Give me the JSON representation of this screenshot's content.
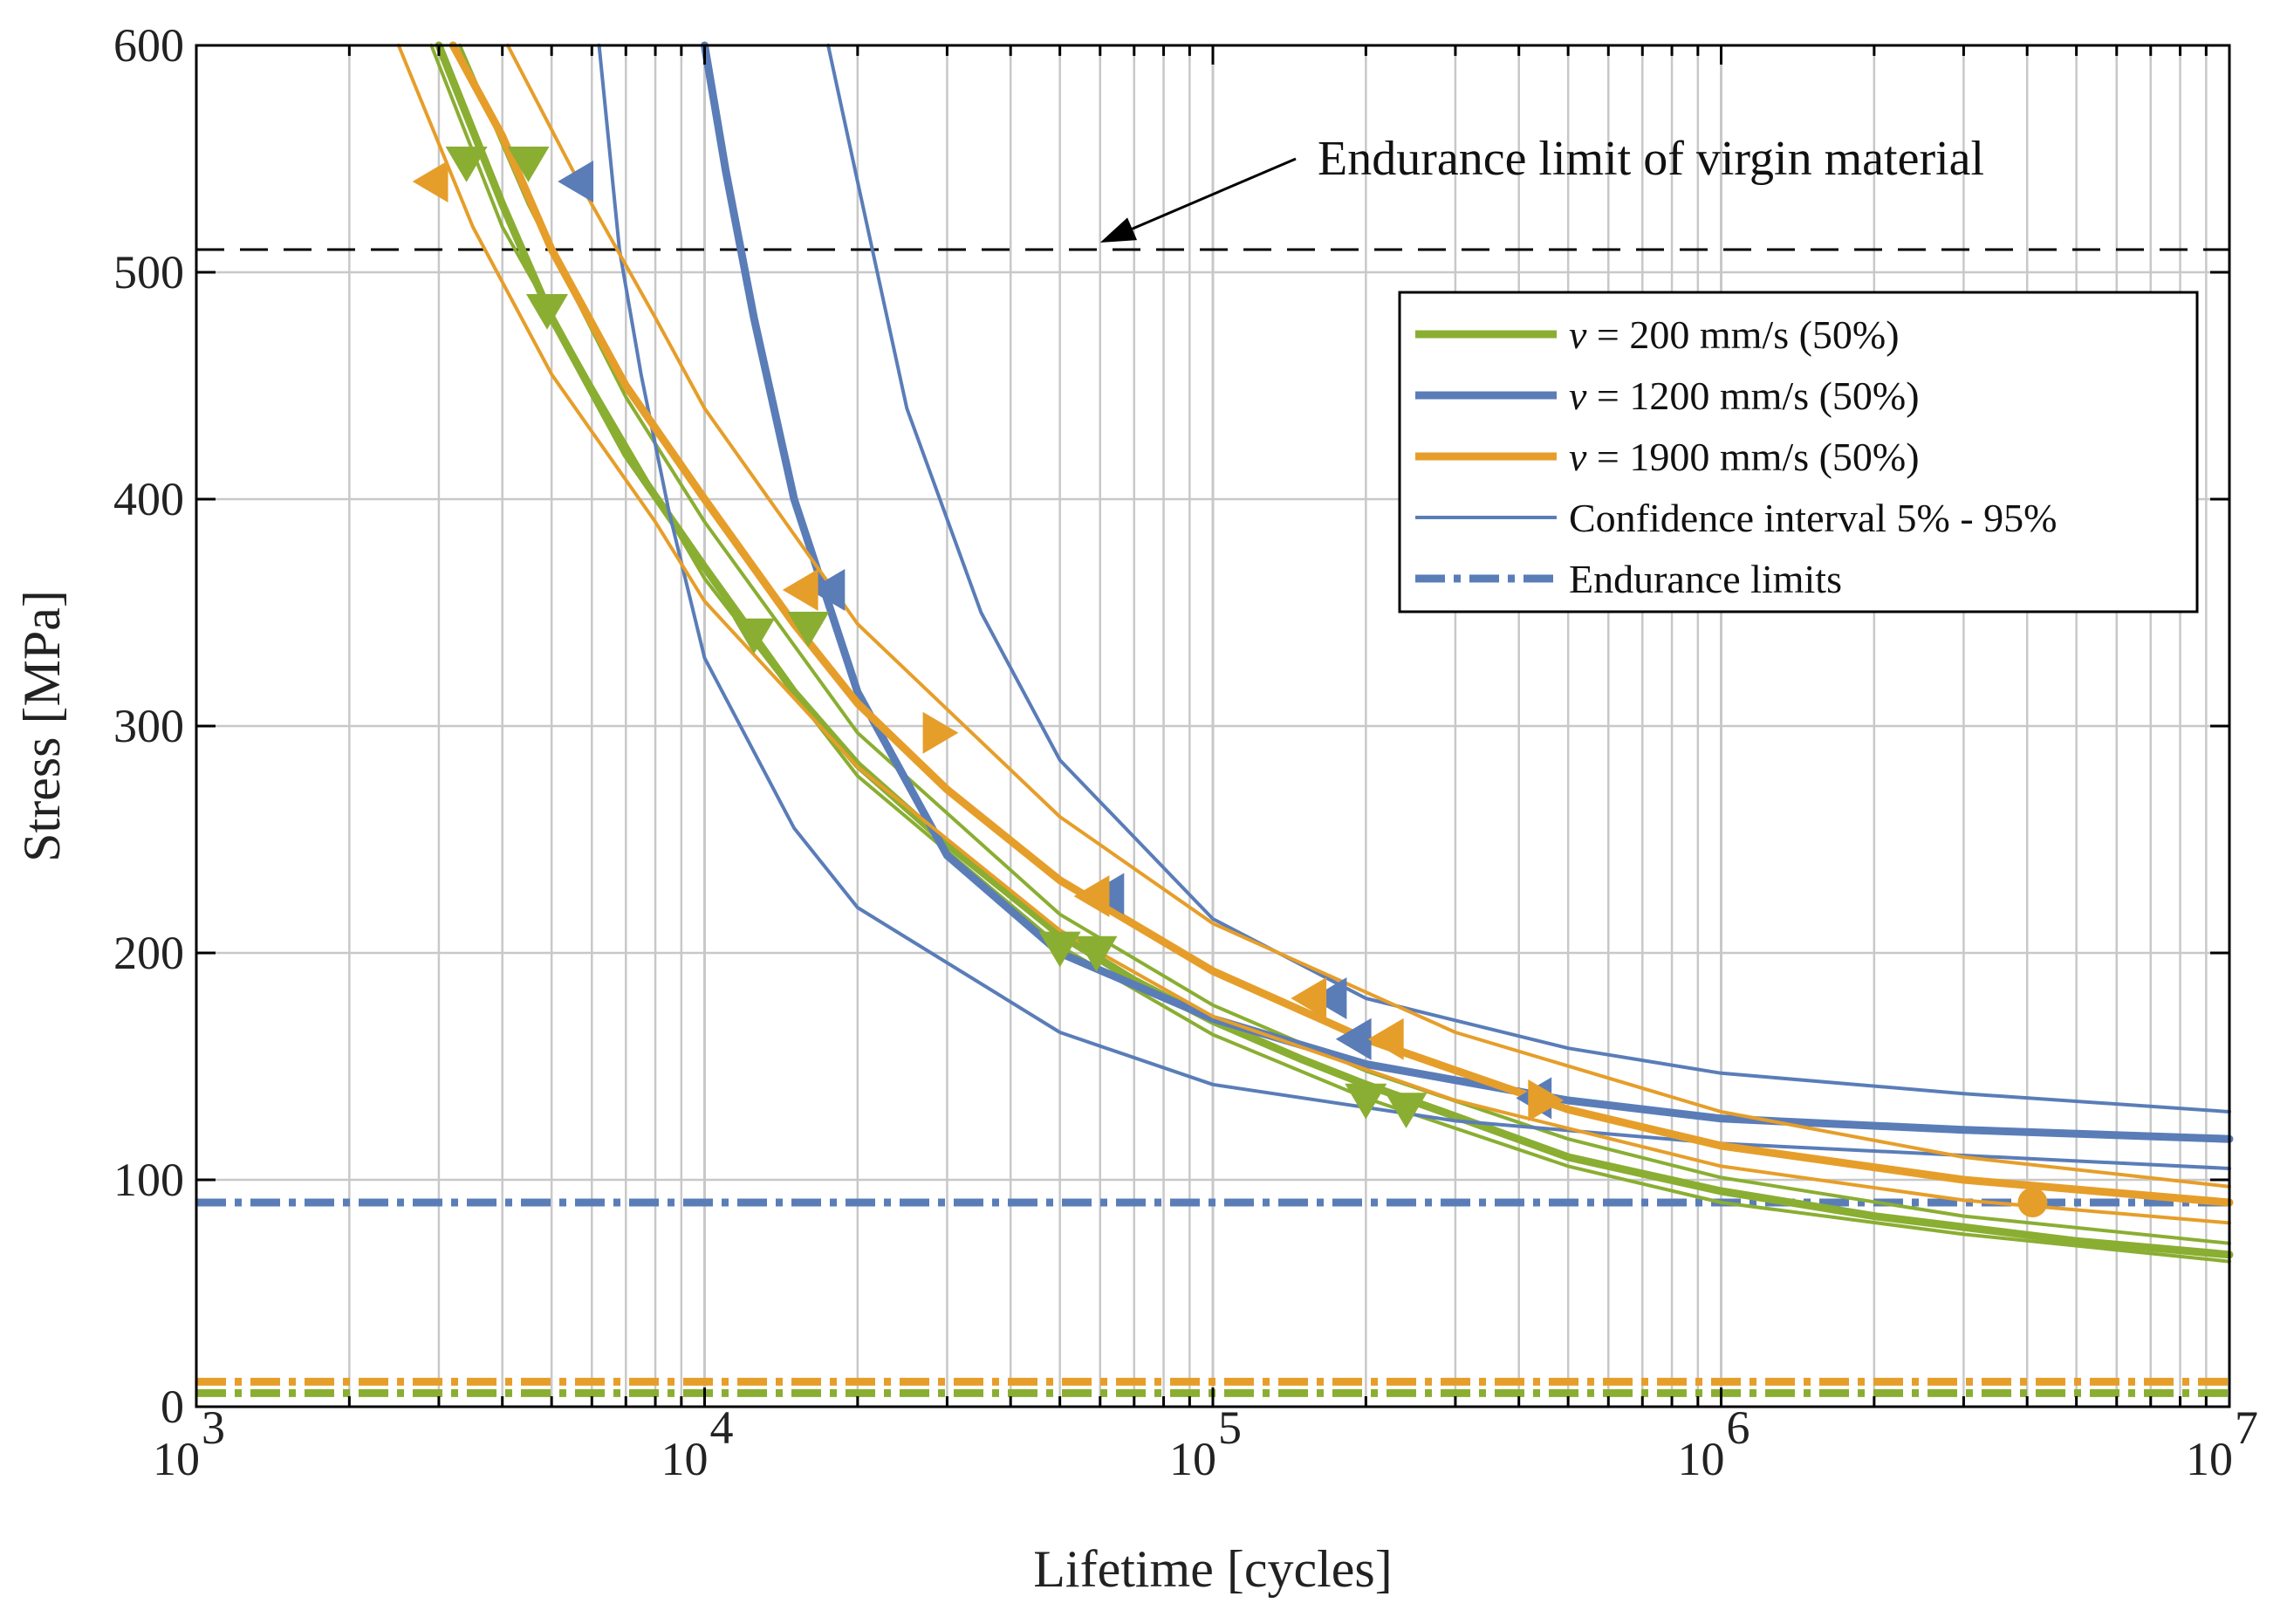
{
  "colors": {
    "green": "#8aae32",
    "blue": "#5a7db8",
    "orange": "#e69e2a",
    "grid": "#c8c8c8",
    "axis": "#000000",
    "endurance_virgin": "#000000"
  },
  "chart_data": {
    "type": "line",
    "xscale": "log",
    "xlabel": "Lifetime [cycles]",
    "ylabel": "Stress [MPa]",
    "xlim": [
      1000,
      10000000
    ],
    "ylim": [
      0,
      600
    ],
    "x_ticks": [
      {
        "value": 1000,
        "base": "10",
        "exp": "3"
      },
      {
        "value": 10000,
        "base": "10",
        "exp": "4"
      },
      {
        "value": 100000,
        "base": "10",
        "exp": "5"
      },
      {
        "value": 1000000,
        "base": "10",
        "exp": "6"
      },
      {
        "value": 10000000,
        "base": "10",
        "exp": "7"
      }
    ],
    "y_ticks": [
      {
        "value": 0,
        "label": "0"
      },
      {
        "value": 100,
        "label": "100"
      },
      {
        "value": 200,
        "label": "200"
      },
      {
        "value": 300,
        "label": "300"
      },
      {
        "value": 400,
        "label": "400"
      },
      {
        "value": 500,
        "label": "500"
      },
      {
        "value": 600,
        "label": "600"
      }
    ],
    "grid": true,
    "legend_position": "top-right",
    "legend": [
      {
        "italic": "v",
        "text": " = 200 mm/s (50%)",
        "color_key": "green",
        "style": "thick"
      },
      {
        "italic": "v",
        "text": " = 1200 mm/s (50%)",
        "color_key": "blue",
        "style": "thick"
      },
      {
        "italic": "v",
        "text": " = 1900 mm/s (50%)",
        "color_key": "orange",
        "style": "thick"
      },
      {
        "italic": "",
        "text": "Confidence interval 5% - 95%",
        "color_key": "blue",
        "style": "thin"
      },
      {
        "italic": "",
        "text": "Endurance limits",
        "color_key": "blue",
        "style": "dashdot"
      }
    ],
    "annotation": {
      "text": "Endurance limit of virgin material",
      "endurance_limit_virgin_MPa": 510,
      "arrow_to": {
        "x": 60000,
        "y": 510
      }
    },
    "endurance_limits": [
      {
        "series": "v = 1200 mm/s",
        "color_key": "blue",
        "value": 90
      },
      {
        "series": "v = 1900 mm/s",
        "color_key": "orange",
        "value": 11
      },
      {
        "series": "v = 200 mm/s",
        "color_key": "green",
        "value": 6
      }
    ],
    "series": [
      {
        "name": "v = 200 mm/s (50%)",
        "color_key": "green",
        "median": [
          [
            3000,
            600
          ],
          [
            4000,
            530
          ],
          [
            5000,
            480
          ],
          [
            7000,
            420
          ],
          [
            10000,
            370
          ],
          [
            15000,
            315
          ],
          [
            20000,
            283
          ],
          [
            30000,
            248
          ],
          [
            50000,
            208
          ],
          [
            70000,
            188
          ],
          [
            100000,
            170
          ],
          [
            150000,
            153
          ],
          [
            200000,
            142
          ],
          [
            300000,
            128
          ],
          [
            500000,
            110
          ],
          [
            1000000,
            95
          ],
          [
            2000000,
            84
          ],
          [
            5000000,
            73
          ],
          [
            10000000,
            67
          ]
        ],
        "bounds": [
          [
            [
              2900,
              600
            ],
            [
              4000,
              520
            ],
            [
              6000,
              450
            ],
            [
              10000,
              365
            ],
            [
              20000,
              278
            ],
            [
              50000,
              203
            ],
            [
              100000,
              164
            ],
            [
              200000,
              136
            ],
            [
              500000,
              106
            ],
            [
              1000000,
              90
            ],
            [
              3000000,
              76
            ],
            [
              10000000,
              64
            ]
          ],
          [
            [
              3300,
              600
            ],
            [
              4500,
              530
            ],
            [
              7000,
              445
            ],
            [
              10000,
              390
            ],
            [
              20000,
              297
            ],
            [
              50000,
              217
            ],
            [
              100000,
              177
            ],
            [
              200000,
              148
            ],
            [
              500000,
              118
            ],
            [
              1000000,
              101
            ],
            [
              3000000,
              84
            ],
            [
              10000000,
              72
            ]
          ]
        ],
        "points": [
          {
            "x": 3400,
            "y": 548,
            "marker": "triangle-down"
          },
          {
            "x": 4500,
            "y": 548,
            "marker": "triangle-down"
          },
          {
            "x": 4900,
            "y": 483,
            "marker": "triangle-down"
          },
          {
            "x": 12500,
            "y": 340,
            "marker": "triangle-down"
          },
          {
            "x": 16000,
            "y": 343,
            "marker": "triangle-down"
          },
          {
            "x": 50000,
            "y": 202,
            "marker": "triangle-down"
          },
          {
            "x": 59000,
            "y": 200,
            "marker": "triangle-down"
          },
          {
            "x": 200000,
            "y": 135,
            "marker": "triangle-down"
          },
          {
            "x": 240000,
            "y": 131,
            "marker": "triangle-down"
          }
        ]
      },
      {
        "name": "v = 1200 mm/s (50%)",
        "color_key": "blue",
        "median": [
          [
            10000,
            600
          ],
          [
            11000,
            545
          ],
          [
            12500,
            480
          ],
          [
            15000,
            400
          ],
          [
            20000,
            315
          ],
          [
            30000,
            243
          ],
          [
            50000,
            200
          ],
          [
            100000,
            171
          ],
          [
            200000,
            151
          ],
          [
            500000,
            135
          ],
          [
            1000000,
            127
          ],
          [
            3000000,
            122
          ],
          [
            10000000,
            118
          ]
        ],
        "bounds": [
          [
            [
              6200,
              600
            ],
            [
              6800,
              510
            ],
            [
              7500,
              455
            ],
            [
              8500,
              395
            ],
            [
              10000,
              330
            ],
            [
              15000,
              255
            ],
            [
              20000,
              220
            ],
            [
              50000,
              165
            ],
            [
              100000,
              142
            ],
            [
              300000,
              126
            ],
            [
              1000000,
              116
            ],
            [
              10000000,
              105
            ]
          ],
          [
            [
              17500,
              600
            ],
            [
              20000,
              540
            ],
            [
              25000,
              440
            ],
            [
              35000,
              350
            ],
            [
              50000,
              285
            ],
            [
              100000,
              215
            ],
            [
              200000,
              180
            ],
            [
              500000,
              158
            ],
            [
              1000000,
              147
            ],
            [
              3000000,
              138
            ],
            [
              10000000,
              130
            ]
          ]
        ],
        "points": [
          {
            "x": 5600,
            "y": 540,
            "marker": "triangle-left"
          },
          {
            "x": 17500,
            "y": 360,
            "marker": "triangle-left"
          },
          {
            "x": 62000,
            "y": 226,
            "marker": "triangle-left"
          },
          {
            "x": 170000,
            "y": 180,
            "marker": "triangle-left"
          },
          {
            "x": 190000,
            "y": 162,
            "marker": "triangle-left"
          },
          {
            "x": 430000,
            "y": 136,
            "marker": "triangle-left"
          }
        ]
      },
      {
        "name": "v = 1900 mm/s (50%)",
        "color_key": "orange",
        "median": [
          [
            3200,
            600
          ],
          [
            4000,
            560
          ],
          [
            5000,
            510
          ],
          [
            7000,
            450
          ],
          [
            10000,
            400
          ],
          [
            15000,
            345
          ],
          [
            20000,
            310
          ],
          [
            30000,
            272
          ],
          [
            50000,
            232
          ],
          [
            100000,
            192
          ],
          [
            200000,
            162
          ],
          [
            500000,
            131
          ],
          [
            1000000,
            115
          ],
          [
            3000000,
            100
          ],
          [
            10000000,
            90
          ]
        ],
        "bounds": [
          [
            [
              2500,
              600
            ],
            [
              3500,
              520
            ],
            [
              5000,
              455
            ],
            [
              8000,
              390
            ],
            [
              10000,
              355
            ],
            [
              20000,
              282
            ],
            [
              50000,
              210
            ],
            [
              100000,
              172
            ],
            [
              300000,
              135
            ],
            [
              1000000,
              106
            ],
            [
              3000000,
              91
            ],
            [
              10000000,
              81
            ]
          ],
          [
            [
              4100,
              600
            ],
            [
              5500,
              545
            ],
            [
              8000,
              480
            ],
            [
              10000,
              440
            ],
            [
              20000,
              345
            ],
            [
              50000,
              260
            ],
            [
              100000,
              213
            ],
            [
              300000,
              165
            ],
            [
              1000000,
              130
            ],
            [
              3000000,
              110
            ],
            [
              10000000,
              97
            ]
          ]
        ],
        "points": [
          {
            "x": 2900,
            "y": 540,
            "marker": "triangle-left"
          },
          {
            "x": 15500,
            "y": 360,
            "marker": "triangle-left"
          },
          {
            "x": 29000,
            "y": 297,
            "marker": "triangle-right"
          },
          {
            "x": 58000,
            "y": 225,
            "marker": "triangle-left"
          },
          {
            "x": 155000,
            "y": 180,
            "marker": "triangle-left"
          },
          {
            "x": 220000,
            "y": 162,
            "marker": "triangle-left"
          },
          {
            "x": 450000,
            "y": 135,
            "marker": "triangle-right"
          },
          {
            "x": 4100000,
            "y": 90,
            "marker": "circle"
          }
        ]
      }
    ]
  }
}
